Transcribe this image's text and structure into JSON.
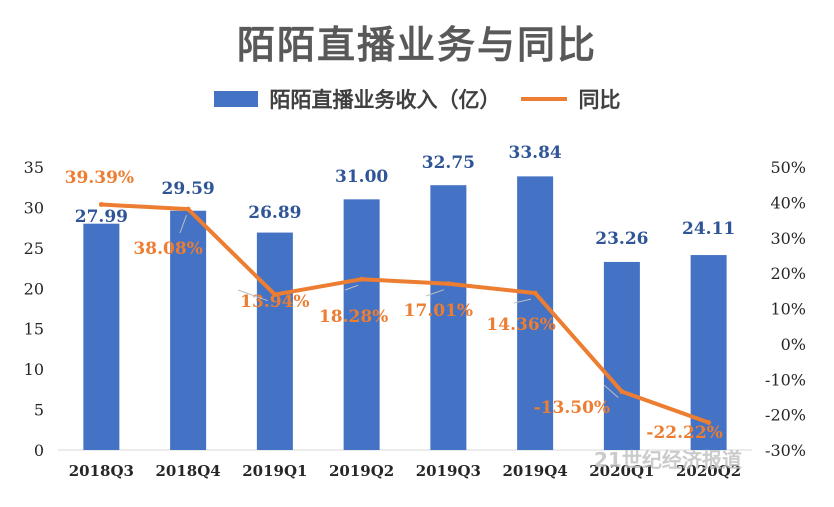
{
  "chart_data": {
    "type": "bar",
    "title": "陌陌直播业务与同比",
    "categories": [
      "2018Q3",
      "2018Q4",
      "2019Q1",
      "2019Q2",
      "2019Q3",
      "2019Q4",
      "2020Q1",
      "2020Q2"
    ],
    "series": [
      {
        "name": "陌陌直播业务收入（亿）",
        "type": "bar",
        "axis": "left",
        "color": "#4472C4",
        "values": [
          27.99,
          29.59,
          26.89,
          31.0,
          32.75,
          33.84,
          23.26,
          24.11
        ],
        "labels": [
          "27.99",
          "29.59",
          "26.89",
          "31.00",
          "32.75",
          "33.84",
          "23.26",
          "24.11"
        ]
      },
      {
        "name": "同比",
        "type": "line",
        "axis": "right",
        "color": "#ED7D31",
        "values": [
          39.39,
          38.08,
          13.94,
          18.28,
          17.01,
          14.36,
          -13.5,
          -22.22
        ],
        "labels": [
          "39.39%",
          "38.08%",
          "13.94%",
          "18.28%",
          "17.01%",
          "14.36%",
          "-13.50%",
          "-22.22%"
        ]
      }
    ],
    "ylim_left": [
      0,
      35
    ],
    "yticks_left": [
      "0",
      "5",
      "10",
      "15",
      "20",
      "25",
      "30",
      "35"
    ],
    "ylim_right": [
      -30,
      50
    ],
    "yticks_right": [
      "-30%",
      "-20%",
      "-10%",
      "0%",
      "10%",
      "20%",
      "30%",
      "40%",
      "50%"
    ],
    "legend": "top",
    "grid": false
  },
  "watermark": "21世纪经济报道"
}
